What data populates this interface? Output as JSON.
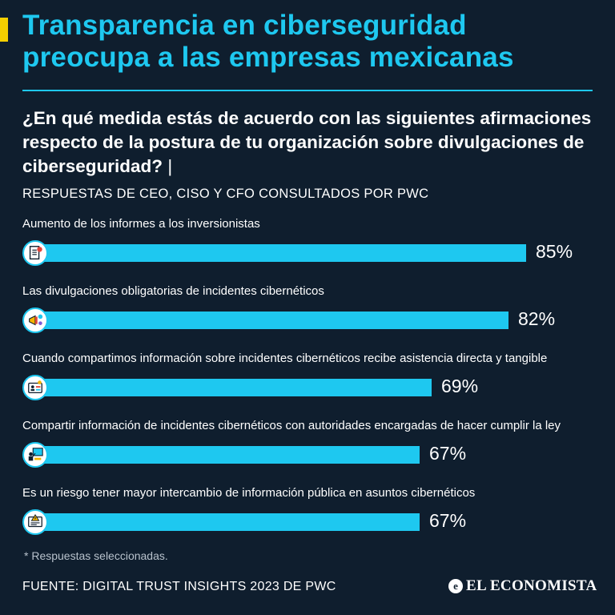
{
  "header": {
    "title": "Transparencia en ciberseguridad preocupa a las empresas mexicanas",
    "question": "¿En qué medida estás de acuerdo con las siguientes afirmaciones respecto de la postura de tu organización sobre divulgaciones de ciberseguridad?",
    "separator": "|",
    "subtitle": "RESPUESTAS DE CEO, CISO Y CFO CONSULTADOS POR PWC"
  },
  "chart_data": {
    "type": "bar",
    "orientation": "horizontal",
    "categories": [
      "Aumento de los informes a los inversionistas",
      "Las divulgaciones obligatorias de incidentes cibernéticos",
      "Cuando compartimos información sobre incidentes cibernéticos recibe asistencia directa y tangible",
      "Compartir información de incidentes cibernéticos con autoridades encargadas de hacer cumplir la ley",
      "Es un riesgo tener mayor intercambio de información pública en asuntos cibernéticos"
    ],
    "values": [
      85,
      82,
      69,
      67,
      67
    ],
    "value_labels": [
      "85%",
      "82%",
      "69%",
      "67%",
      "67%"
    ],
    "icons": [
      "document-icon",
      "megaphone-icon",
      "id-card-icon",
      "presenter-icon",
      "warning-screen-icon"
    ],
    "xlim": [
      0,
      100
    ],
    "unit": "%"
  },
  "footer": {
    "footnote": "* Respuestas seleccionadas.",
    "source": "FUENTE: DIGITAL TRUST INSIGHTS 2023 DE PWC",
    "brand": "EL ECONOMISTA",
    "brand_mark": "e"
  },
  "colors": {
    "background": "#0f1e2e",
    "accent": "#1ec8f0",
    "highlight": "#f5d000"
  }
}
